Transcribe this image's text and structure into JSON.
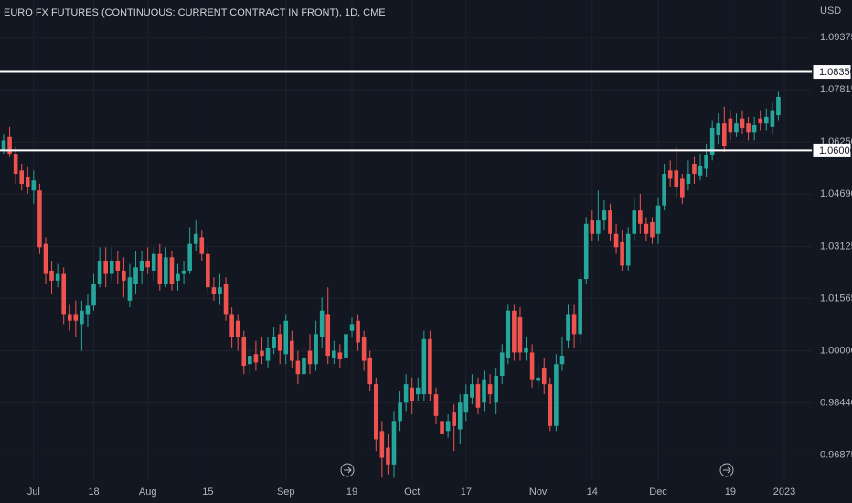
{
  "chart_data": {
    "type": "candlestick",
    "title": "EURO FX FUTURES (CONTINUOUS: CURRENT CONTRACT IN FRONT), 1D, CME",
    "currency": "USD",
    "up_color": "#26a69a",
    "down_color": "#ef5350",
    "grid": true,
    "ylim": [
      0.9613,
      1.105
    ],
    "yticks": [
      {
        "value": 0.96875,
        "label": "0.96875"
      },
      {
        "value": 0.9844,
        "label": "0.98440"
      },
      {
        "value": 1,
        "label": "1.00000"
      },
      1.01565,
      1.03125,
      {
        "value": 1.0469,
        "label": "1.04690"
      },
      {
        "value": 1.0625,
        "label": "1.06250"
      },
      1.07815,
      1.09375
    ],
    "horizontal_lines": [
      {
        "value": 1.0835,
        "label": "1.08350"
      },
      {
        "value": 1.06,
        "label": "1.06000"
      }
    ],
    "categories": [
      null,
      null,
      null,
      null,
      null,
      "Jul",
      null,
      null,
      null,
      null,
      null,
      null,
      null,
      null,
      null,
      "18",
      null,
      null,
      null,
      null,
      null,
      null,
      null,
      null,
      "Aug",
      null,
      null,
      null,
      null,
      null,
      null,
      null,
      null,
      null,
      "15",
      null,
      null,
      null,
      null,
      null,
      null,
      null,
      null,
      null,
      null,
      null,
      null,
      "Sep",
      null,
      null,
      null,
      null,
      null,
      null,
      null,
      null,
      null,
      null,
      "19",
      null,
      null,
      null,
      null,
      null,
      null,
      null,
      null,
      null,
      "Oct",
      null,
      null,
      null,
      null,
      null,
      null,
      null,
      null,
      "17",
      null,
      null,
      null,
      null,
      null,
      null,
      null,
      null,
      null,
      null,
      null,
      "Nov",
      null,
      null,
      null,
      null,
      null,
      null,
      null,
      null,
      "14",
      null,
      null,
      null,
      null,
      null,
      null,
      null,
      null,
      null,
      null,
      "Dec",
      null,
      null,
      null,
      null,
      null,
      null,
      null,
      null,
      null,
      null,
      null,
      "19",
      null,
      null,
      null,
      null,
      null,
      null,
      null,
      null,
      "2023"
    ],
    "open": [
      1.06,
      1.064,
      1.059,
      1.054,
      1.052,
      1.048,
      1.048,
      1.032,
      1.024,
      1.021,
      1.023,
      1.011,
      1.011,
      1.008,
      1.011,
      1.0135,
      1.02,
      1.027,
      1.023,
      1.027,
      1.024,
      1.015,
      1.02,
      1.024,
      1.027,
      1.024,
      1.029,
      1.02,
      1.028,
      1.021,
      1.023,
      1.024,
      1.032,
      1.034,
      1.029,
      1.019,
      1.017,
      1.02,
      1.011,
      1.009,
      1.004,
      0.996,
      0.999,
      1.0,
      0.997,
      1.001,
      1.005,
      0.999,
      1.003,
      0.997,
      0.993,
      1.0,
      0.996,
      1.004,
      1.011,
      0.998,
      0.9995,
      0.998,
      1.006,
      1.009,
      1.004,
      0.998,
      0.99,
      0.976,
      0.971,
      0.966,
      0.979,
      0.9845,
      0.989,
      0.987,
      0.987,
      1.0035,
      0.987,
      0.979,
      0.976,
      0.9815,
      0.9765,
      0.9815,
      0.986,
      0.99,
      0.9845,
      0.99,
      0.9845,
      0.9925,
      0.998,
      1.012,
      1.01,
      0.9995,
      0.9995,
      0.991,
      0.995,
      0.99,
      0.9775,
      0.996,
      1.003,
      1.011,
      1.005,
      1.0215,
      1.039,
      1.035,
      1.039,
      1.042,
      1.035,
      1.0325,
      1.0255,
      1.035,
      1.042,
      1.038,
      1.0385,
      1.035,
      1.0435,
      1.054,
      1.054,
      1.0515,
      1.05,
      1.056,
      1.0525,
      1.0545,
      1.0585,
      1.0645,
      1.068,
      1.0695,
      1.0655,
      1.0695,
      1.068,
      1.0655,
      1.0695,
      1.068,
      1.067,
      1.0705,
      null
    ],
    "high": [
      1.065,
      1.067,
      1.061,
      1.056,
      1.055,
      1.054,
      1.05,
      1.034,
      1.027,
      1.026,
      1.025,
      1.014,
      1.015,
      1.015,
      1.017,
      1.023,
      1.031,
      1.031,
      1.031,
      1.03,
      1.028,
      1.026,
      1.03,
      1.03,
      1.031,
      1.031,
      1.032,
      1.031,
      1.03,
      1.026,
      1.027,
      1.037,
      1.039,
      1.036,
      1.031,
      1.022,
      1.023,
      1.022,
      1.013,
      1.011,
      1.006,
      1.001,
      1.003,
      1.004,
      1.004,
      1.007,
      1.008,
      1.011,
      1.006,
      1.0,
      1.002,
      1.005,
      1.009,
      1.016,
      1.019,
      1.003,
      1.002,
      1.009,
      1.01,
      1.011,
      1.006,
      1.0,
      0.992,
      0.979,
      0.975,
      0.982,
      0.988,
      0.993,
      0.992,
      0.992,
      1.006,
      1.006,
      0.989,
      0.982,
      0.981,
      0.984,
      0.987,
      0.99,
      0.993,
      0.992,
      0.994,
      0.993,
      0.995,
      1.002,
      1.014,
      1.014,
      1.013,
      1.004,
      1.002,
      0.996,
      0.998,
      0.992,
      0.999,
      1.004,
      1.014,
      1.014,
      1.024,
      1.04,
      1.042,
      1.048,
      1.045,
      1.044,
      1.038,
      1.036,
      1.037,
      1.046,
      1.047,
      1.04,
      1.04,
      1.046,
      1.056,
      1.057,
      1.061,
      1.053,
      1.057,
      1.058,
      1.059,
      1.062,
      1.069,
      1.071,
      1.073,
      1.072,
      1.071,
      1.072,
      1.07,
      1.07,
      1.072,
      1.0725,
      1.0745,
      1.0775,
      null
    ],
    "low": [
      1.059,
      1.058,
      1.05,
      1.048,
      1.047,
      1.044,
      1.029,
      1.02,
      1.017,
      1.019,
      1.008,
      1.006,
      1.004,
      1.0,
      1.007,
      1.012,
      1.019,
      1.019,
      1.021,
      1.02,
      1.016,
      1.013,
      1.017,
      1.02,
      1.023,
      1.021,
      1.018,
      1.019,
      1.018,
      1.018,
      1.02,
      1.023,
      1.03,
      1.027,
      1.017,
      1.015,
      1.014,
      1.009,
      1.001,
      1.0,
      0.993,
      0.993,
      0.994,
      0.996,
      0.995,
      0.999,
      0.996,
      0.996,
      0.995,
      0.99,
      0.991,
      0.993,
      0.994,
      1.001,
      0.996,
      0.996,
      0.995,
      0.996,
      1.004,
      1.0,
      0.994,
      0.988,
      0.97,
      0.962,
      0.963,
      0.962,
      0.976,
      0.982,
      0.981,
      0.985,
      0.985,
      0.985,
      0.978,
      0.973,
      0.974,
      0.97,
      0.972,
      0.979,
      0.984,
      0.981,
      0.982,
      0.984,
      0.981,
      0.99,
      0.996,
      0.997,
      0.997,
      0.997,
      0.989,
      0.989,
      0.987,
      0.976,
      0.976,
      0.994,
      1.001,
      1.001,
      1.002,
      1.02,
      1.033,
      1.033,
      1.036,
      1.033,
      1.029,
      1.024,
      1.024,
      1.033,
      1.035,
      1.033,
      1.032,
      1.032,
      1.042,
      1.049,
      1.046,
      1.044,
      1.048,
      1.05,
      1.051,
      1.052,
      1.057,
      1.062,
      1.0595,
      1.063,
      1.064,
      1.065,
      1.063,
      1.063,
      1.066,
      1.066,
      1.065,
      1.069,
      null
    ],
    "close": [
      1.063,
      1.059,
      1.053,
      1.05,
      1.049,
      1.051,
      1.031,
      1.023,
      1.021,
      1.023,
      1.011,
      1.009,
      1.009,
      1.012,
      1.0135,
      1.02,
      1.027,
      1.023,
      1.027,
      1.024,
      1.021,
      1.022,
      1.025,
      1.027,
      1.025,
      1.029,
      1.02,
      1.028,
      1.02,
      1.023,
      1.024,
      1.032,
      1.035,
      1.029,
      1.019,
      1.017,
      1.019,
      1.011,
      1.004,
      1.004,
      0.9955,
      0.9985,
      0.9965,
      0.9985,
      1.001,
      1.004,
      1.0,
      1.009,
      0.997,
      0.993,
      0.998,
      0.996,
      1.005,
      1.012,
      0.9985,
      1.0,
      0.9975,
      1.005,
      1.008,
      1.0025,
      0.997,
      0.99,
      0.9735,
      0.968,
      0.966,
      0.979,
      0.9845,
      0.99,
      0.985,
      0.989,
      1.0035,
      0.987,
      0.9805,
      0.975,
      0.979,
      0.9775,
      0.9845,
      0.987,
      0.99,
      0.983,
      0.9915,
      0.987,
      0.9925,
      0.9995,
      1.012,
      0.9995,
      0.9995,
      1.001,
      0.9915,
      0.992,
      0.99,
      0.9775,
      0.996,
      0.9985,
      1.011,
      1.005,
      1.0215,
      1.038,
      1.035,
      1.039,
      1.042,
      1.035,
      1.031,
      1.0255,
      1.035,
      1.042,
      1.038,
      1.035,
      1.034,
      1.0435,
      1.053,
      1.0515,
      1.049,
      1.046,
      1.053,
      1.053,
      1.0555,
      1.0585,
      1.0667,
      1.068,
      1.0612,
      1.0655,
      1.068,
      1.0667,
      1.0655,
      1.0675,
      1.068,
      1.07,
      1.072,
      1.076,
      null
    ]
  }
}
